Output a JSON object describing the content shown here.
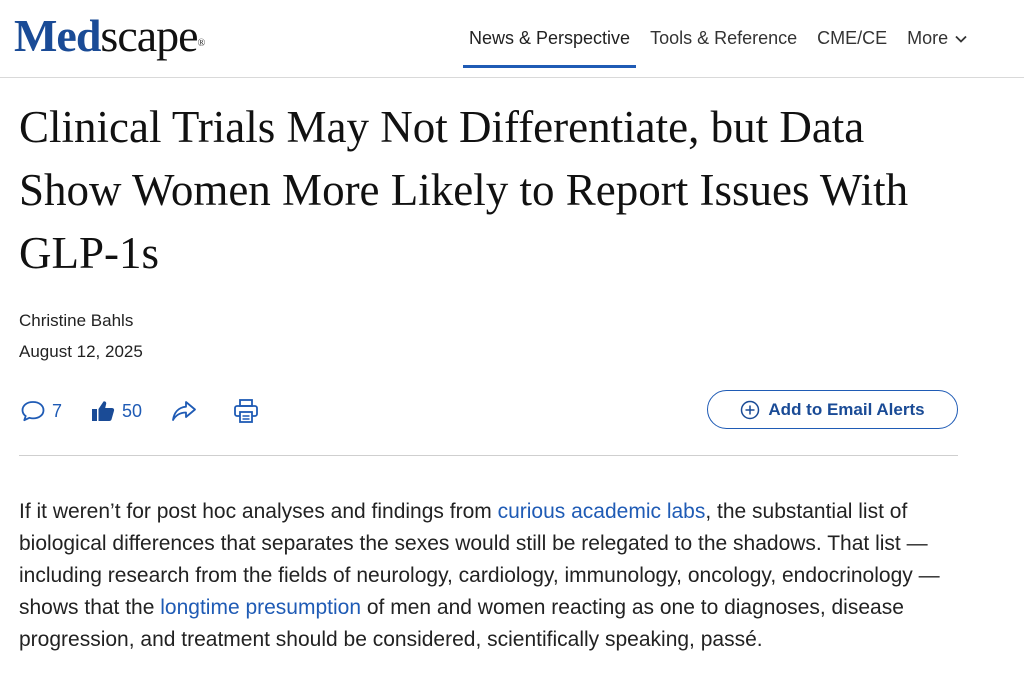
{
  "header": {
    "logo_part1": "Med",
    "logo_part2": "scape",
    "logo_mark": "®",
    "nav": [
      {
        "label": "News & Perspective",
        "active": true
      },
      {
        "label": "Tools & Reference"
      },
      {
        "label": "CME/CE"
      },
      {
        "label": "More",
        "icon": "chevron-down-icon"
      }
    ]
  },
  "article": {
    "title": "Clinical Trials May Not Differentiate, but Data Show Women More Likely to Report Issues With GLP-1s",
    "author": "Christine Bahls",
    "date": "August 12, 2025",
    "actions": {
      "comments_count": "7",
      "likes_count": "50",
      "icons": [
        "comment-icon",
        "thumbs-up-icon",
        "share-icon",
        "print-icon"
      ]
    },
    "email_alert_label": "Add to Email Alerts",
    "paragraph": {
      "t1": "If it weren’t for post hoc analyses and findings from ",
      "link1": "curious academic labs",
      "t2": ", the substantial list of biological differences that separates the sexes would still be relegated to the shadows. That list — including research from the fields of neurology, cardiology, immunology, oncology, endocrinology — shows that the ",
      "link2": "longtime presumption",
      "t3": " of men and women reacting as one to diagnoses, disease progression, and treatment should be considered, scientifically speaking, passé."
    }
  },
  "colors": {
    "brand_blue": "#1a4b96",
    "link_blue": "#1f5bb5"
  }
}
